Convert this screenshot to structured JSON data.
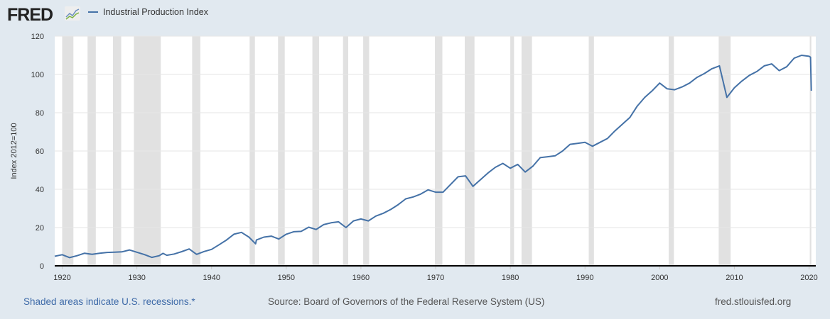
{
  "header": {
    "logo": "FRED",
    "logo_icon": "chart-logo-icon"
  },
  "footer": {
    "note": "Shaded areas indicate U.S. recessions.*",
    "source": "Source: Board of Governors of the Federal Reserve System (US)",
    "url": "fred.stlouisfed.org"
  },
  "colors": {
    "line": "#4572a7",
    "recession": "#e1e1e1",
    "grid": "#e6e6e6"
  },
  "chart_data": {
    "type": "line",
    "title": "",
    "legend": [
      "Industrial Production Index"
    ],
    "legend_placement": "top-left",
    "xlabel": "",
    "ylabel": "Index 2012=100",
    "xlim": [
      1919.0,
      2020.9
    ],
    "ylim": [
      0,
      120
    ],
    "yticks": [
      0,
      20,
      40,
      60,
      80,
      100,
      120
    ],
    "xticks": [
      1920,
      1930,
      1940,
      1950,
      1960,
      1970,
      1980,
      1990,
      2000,
      2010,
      2020
    ],
    "grid": true,
    "recessions": [
      [
        1920.0,
        1921.5
      ],
      [
        1923.4,
        1924.5
      ],
      [
        1926.8,
        1927.9
      ],
      [
        1929.6,
        1933.2
      ],
      [
        1937.4,
        1938.5
      ],
      [
        1945.1,
        1945.8
      ],
      [
        1948.9,
        1949.8
      ],
      [
        1953.5,
        1954.4
      ],
      [
        1957.6,
        1958.3
      ],
      [
        1960.3,
        1961.1
      ],
      [
        1969.9,
        1970.9
      ],
      [
        1973.9,
        1975.2
      ],
      [
        1980.0,
        1980.5
      ],
      [
        1981.5,
        1982.9
      ],
      [
        1990.5,
        1991.2
      ],
      [
        2001.2,
        2001.9
      ],
      [
        2007.9,
        2009.5
      ],
      [
        2020.1,
        2020.3
      ]
    ],
    "series": [
      {
        "name": "Industrial Production Index",
        "x": [
          1919,
          1920,
          1921,
          1922,
          1923,
          1924,
          1925,
          1926,
          1927,
          1928,
          1929,
          1930,
          1931,
          1932,
          1933,
          1933.5,
          1934,
          1935,
          1936,
          1937,
          1938,
          1939,
          1940,
          1941,
          1942,
          1943,
          1944,
          1945,
          1945.9,
          1946,
          1947,
          1948,
          1949,
          1950,
          1951,
          1952,
          1953,
          1954,
          1955,
          1956,
          1957,
          1958,
          1959,
          1960,
          1961,
          1962,
          1963,
          1964,
          1965,
          1966,
          1967,
          1968,
          1969,
          1970,
          1971,
          1972,
          1973,
          1974,
          1975,
          1976,
          1977,
          1978,
          1979,
          1980,
          1981,
          1982,
          1983,
          1984,
          1985,
          1986,
          1987,
          1988,
          1989,
          1990,
          1991,
          1992,
          1993,
          1994,
          1995,
          1996,
          1997,
          1998,
          1999,
          2000,
          2001,
          2002,
          2003,
          2004,
          2005,
          2006,
          2007,
          2008,
          2009,
          2010,
          2011,
          2012,
          2013,
          2014,
          2015,
          2016,
          2017,
          2018,
          2019,
          2020.0,
          2020.2,
          2020.3
        ],
        "values": [
          5.0,
          5.8,
          4.3,
          5.3,
          6.6,
          6.0,
          6.6,
          7.0,
          7.1,
          7.3,
          8.3,
          7.1,
          5.9,
          4.4,
          5.3,
          6.5,
          5.5,
          6.2,
          7.4,
          8.8,
          6.0,
          7.5,
          8.6,
          11,
          13.5,
          16.5,
          17.5,
          15,
          11.5,
          13.5,
          15,
          15.5,
          14,
          16.5,
          17.8,
          18,
          20.2,
          19,
          21.5,
          22.5,
          23,
          20,
          23.5,
          24.5,
          23.5,
          26,
          27.5,
          29.5,
          32,
          35,
          36,
          37.5,
          39.7,
          38.5,
          38.5,
          42.5,
          46.5,
          47,
          41.5,
          45,
          48.5,
          51.5,
          53.5,
          51,
          53,
          49,
          52,
          56.5,
          57,
          57.5,
          60,
          63.5,
          64,
          64.5,
          62.5,
          64.5,
          66.5,
          70.5,
          74,
          77.5,
          83.5,
          88,
          91.5,
          95.5,
          92.5,
          92,
          93.5,
          95.5,
          98.5,
          100.5,
          103,
          104.5,
          88,
          93,
          96.5,
          99.5,
          101.5,
          104.5,
          105.5,
          102,
          104,
          108.5,
          110,
          109.5,
          109,
          91.5
        ]
      }
    ]
  }
}
